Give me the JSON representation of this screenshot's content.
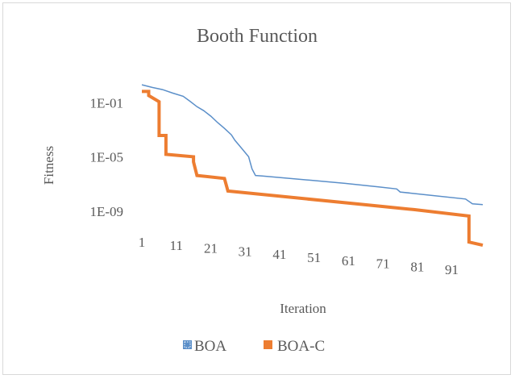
{
  "chart_data": {
    "type": "line",
    "title": "Booth Function",
    "xlabel": "Iteration",
    "ylabel": "Fitness",
    "y_scale": "log",
    "ylim": [
      1e-13,
      10
    ],
    "y_tick_labels": [
      "1E-01",
      "1E-05",
      "1E-09"
    ],
    "y_tick_values": [
      0.1,
      1e-05,
      1e-09
    ],
    "x_tick_labels": [
      "1",
      "11",
      "21",
      "31",
      "41",
      "51",
      "61",
      "71",
      "81",
      "91"
    ],
    "x_tick_values": [
      1,
      11,
      21,
      31,
      41,
      51,
      61,
      71,
      81,
      91
    ],
    "xlim": [
      1,
      100
    ],
    "grid": false,
    "legend_position": "bottom",
    "colors": {
      "BOA": "#5b8fc9",
      "BOA-C": "#ed7d31"
    },
    "series": [
      {
        "name": "BOA",
        "color": "#5b8fc9",
        "points": [
          [
            1,
            2.5
          ],
          [
            4,
            1.6
          ],
          [
            7,
            1.1
          ],
          [
            10,
            0.6
          ],
          [
            13,
            0.35
          ],
          [
            15,
            0.15
          ],
          [
            17,
            0.06
          ],
          [
            19,
            0.03
          ],
          [
            21,
            0.012
          ],
          [
            23,
            0.004
          ],
          [
            25,
            0.0015
          ],
          [
            27,
            0.0005
          ],
          [
            28,
            0.0002
          ],
          [
            30,
            5e-05
          ],
          [
            32,
            1.2e-05
          ],
          [
            33,
            1.5e-06
          ],
          [
            34,
            5e-07
          ],
          [
            36,
            4.5e-07
          ],
          [
            50,
            2.2e-07
          ],
          [
            60,
            1.3e-07
          ],
          [
            70,
            7e-08
          ],
          [
            75,
            5e-08
          ],
          [
            76,
            3e-08
          ],
          [
            85,
            1.7e-08
          ],
          [
            95,
            9e-09
          ],
          [
            97,
            4e-09
          ],
          [
            100,
            3.5e-09
          ]
        ]
      },
      {
        "name": "BOA-C",
        "color": "#ed7d31",
        "points": [
          [
            1,
            0.8
          ],
          [
            3,
            0.8
          ],
          [
            3,
            0.4
          ],
          [
            6,
            0.14
          ],
          [
            6,
            0.00045
          ],
          [
            8,
            0.00045
          ],
          [
            8,
            1.8e-05
          ],
          [
            16,
            1.2e-05
          ],
          [
            16,
            5e-06
          ],
          [
            17,
            5e-07
          ],
          [
            25,
            3e-07
          ],
          [
            26,
            3.5e-08
          ],
          [
            80,
            1.5e-09
          ],
          [
            96,
            5e-10
          ],
          [
            96,
            6e-12
          ],
          [
            100,
            3.5e-12
          ]
        ]
      }
    ]
  }
}
